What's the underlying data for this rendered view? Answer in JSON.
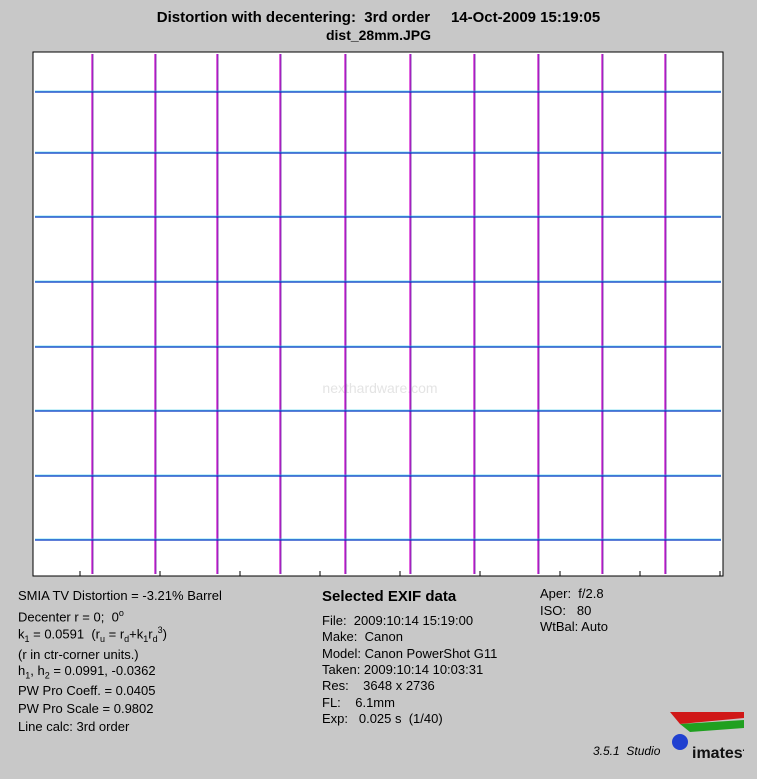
{
  "header": {
    "title": "Distortion with decentering:  3rd order     14-Oct-2009 15:19:05",
    "file": "dist_28mm.JPG"
  },
  "watermark": "nexthardware.com",
  "results": {
    "lines": [
      [
        {
          "t": "SMIA TV Distortion = -3.21% Barrel"
        }
      ],
      [
        {
          "t": "Decenter r = 0;  0"
        },
        {
          "sup": "o"
        }
      ],
      [
        {
          "t": "k"
        },
        {
          "sub": "1"
        },
        {
          "t": " = 0.0591  (r"
        },
        {
          "sub": "u"
        },
        {
          "t": " = r"
        },
        {
          "sub": "d"
        },
        {
          "t": "+k"
        },
        {
          "sub": "1"
        },
        {
          "t": "r"
        },
        {
          "sub": "d"
        },
        {
          "sup": "3"
        },
        {
          "t": ")"
        }
      ],
      [
        {
          "t": "(r in ctr-corner units.)"
        }
      ],
      [
        {
          "t": "h"
        },
        {
          "sub": "1"
        },
        {
          "t": ", h"
        },
        {
          "sub": "2"
        },
        {
          "t": " = 0.0991, -0.0362"
        }
      ],
      [
        {
          "t": "PW Pro Coeff. = 0.0405"
        }
      ],
      [
        {
          "t": "PW Pro Scale = 0.9802"
        }
      ],
      [
        {
          "t": "Line calc: 3rd order"
        }
      ]
    ]
  },
  "exif": {
    "title": "Selected EXIF data",
    "lines": [
      "File:  2009:10:14 15:19:00",
      "Make:  Canon",
      "Model: Canon PowerShot G11",
      "Taken: 2009:10:14 10:03:31",
      "Res:    3648 x 2736",
      "FL:    6.1mm",
      "Exp:   0.025 s  (1/40)"
    ]
  },
  "camera": {
    "lines": [
      "Aper:  f/2.8",
      "ISO:   80",
      "WtBal: Auto"
    ]
  },
  "footer": {
    "version": "3.5.1  Studio",
    "logo": "imatest"
  }
}
